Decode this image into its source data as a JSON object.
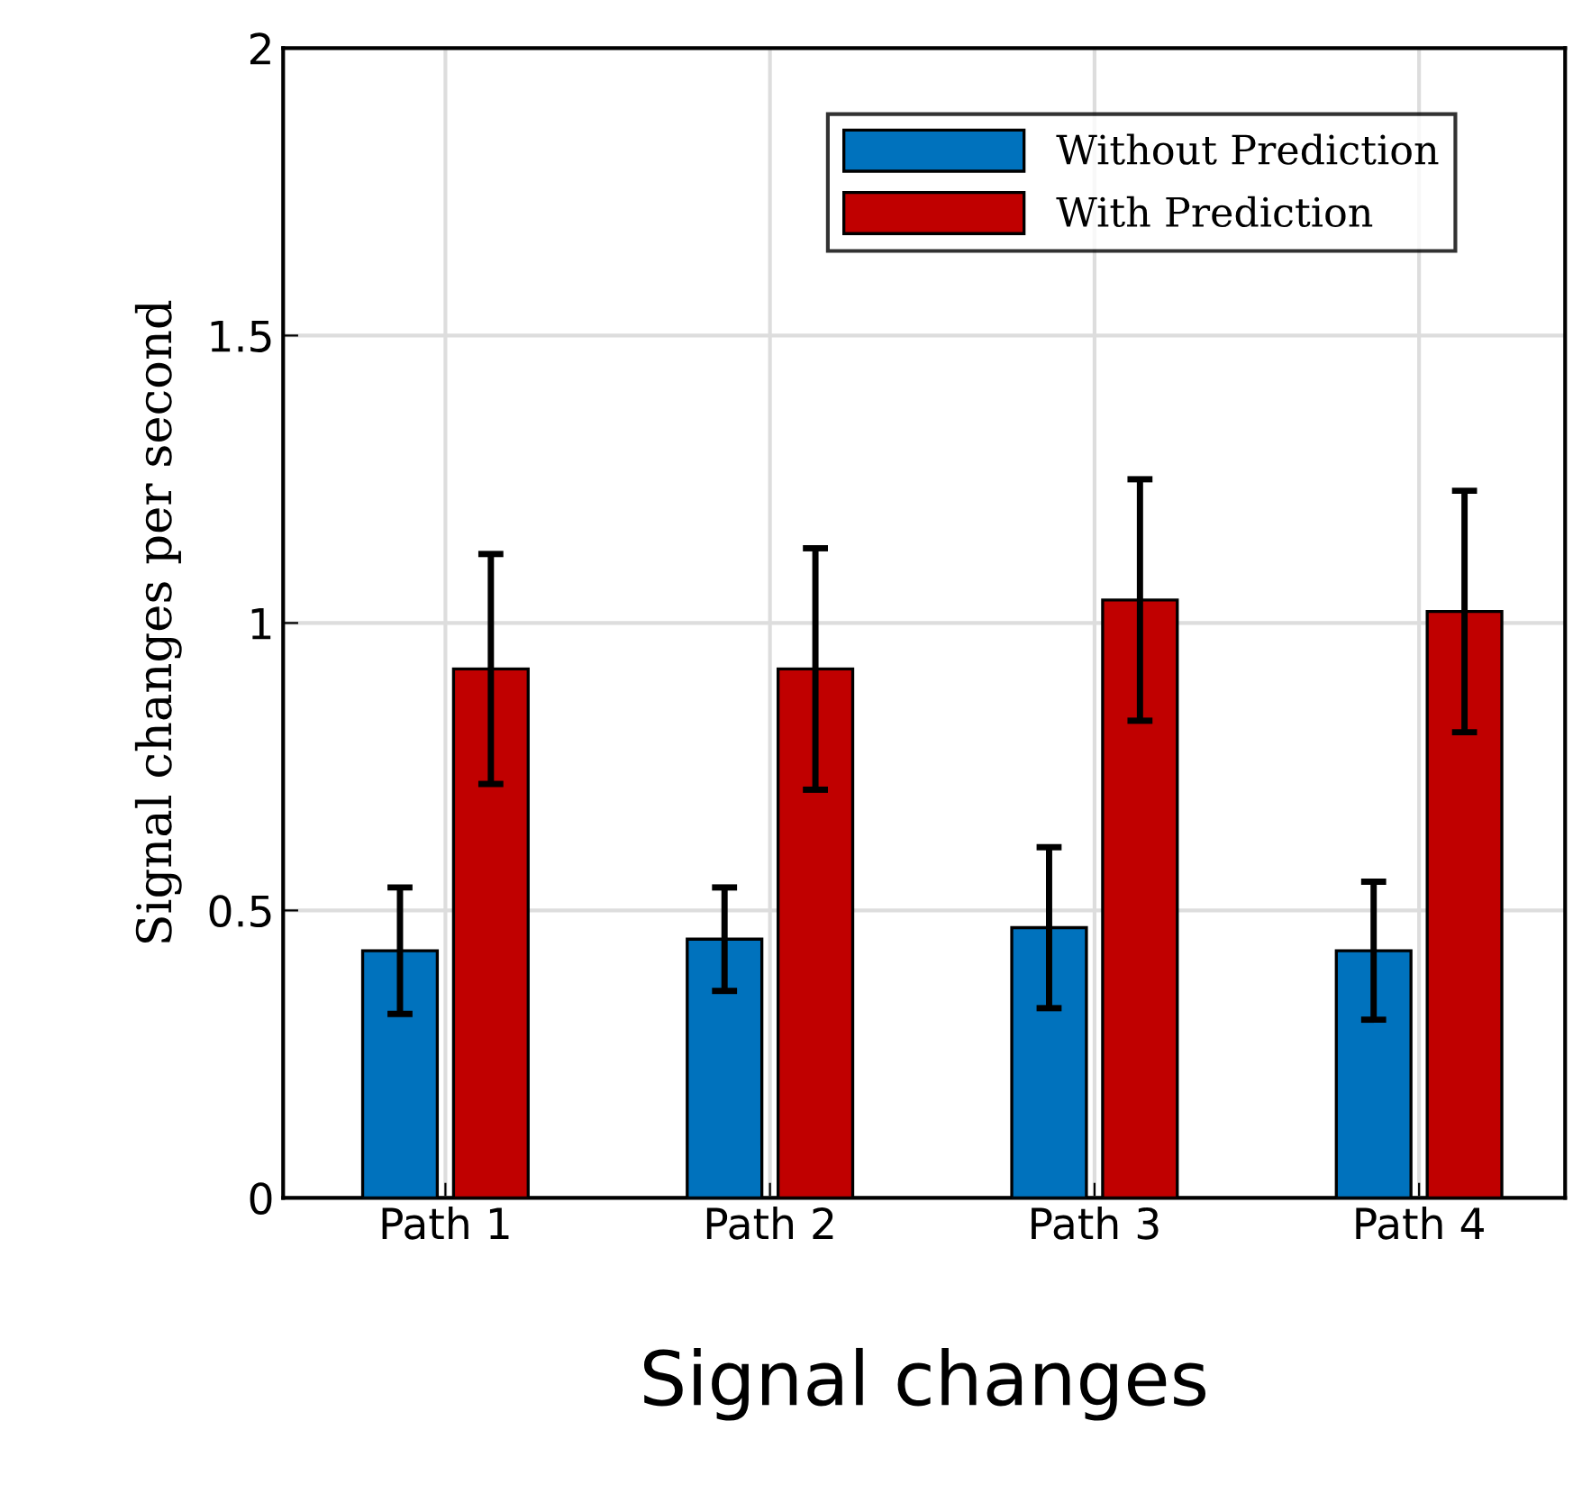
{
  "chart_data": {
    "type": "bar",
    "xlabel": "Signal changes",
    "ylabel": "Signal changes per second",
    "categories": [
      "Path 1",
      "Path 2",
      "Path 3",
      "Path 4"
    ],
    "series": [
      {
        "name": "Without Prediction",
        "color": "#0072bd",
        "values": [
          0.43,
          0.45,
          0.47,
          0.43
        ],
        "errors": [
          0.11,
          0.09,
          0.14,
          0.12
        ]
      },
      {
        "name": "With Prediction",
        "color": "#c00000",
        "values": [
          0.92,
          0.92,
          1.04,
          1.02
        ],
        "errors": [
          0.2,
          0.21,
          0.21,
          0.21
        ]
      }
    ],
    "ylim": [
      0,
      2
    ],
    "yticks": [
      0,
      0.5,
      1,
      1.5,
      2
    ],
    "grid": true,
    "legend": "top right"
  }
}
